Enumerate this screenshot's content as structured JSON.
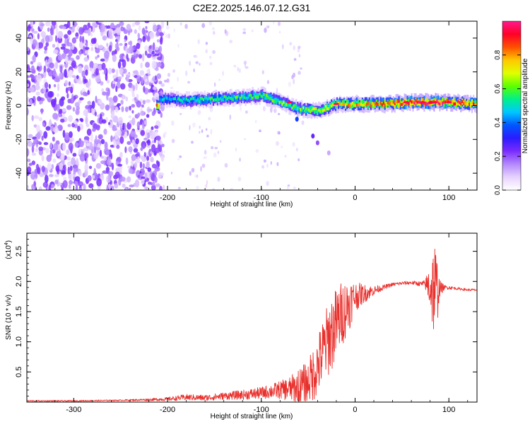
{
  "title": "C2E2.2025.146.07.12.G31",
  "colors": {
    "snr_line": "#e8302c",
    "colormap": [
      "#ffffff",
      "#e6d2ff",
      "#b488ff",
      "#7a2bff",
      "#2a1cff",
      "#0057ff",
      "#00c8ff",
      "#00f08c",
      "#5cff00",
      "#e0ff00",
      "#ffc800",
      "#ff5000",
      "#ff0028",
      "#ff1a8c"
    ]
  },
  "chart_data": [
    {
      "type": "heatmap",
      "title": "",
      "xlabel": "Height of straight line (km)",
      "ylabel": "Frequency (Hz)",
      "xlim": [
        -350,
        130
      ],
      "ylim": [
        -50,
        50
      ],
      "xticks": [
        "-300",
        "-200",
        "-100",
        "0",
        "100"
      ],
      "xtick_values": [
        -300,
        -200,
        -100,
        0,
        100
      ],
      "yticks": [
        "-40",
        "-20",
        "0",
        "20",
        "40"
      ],
      "ytick_values": [
        -40,
        -20,
        0,
        20,
        40
      ],
      "colorbar": {
        "label": "Normalized spectral amplitude",
        "range": [
          0,
          1
        ],
        "ticks": [
          "0.0",
          "0.2",
          "0.4",
          "0.6",
          "0.8"
        ],
        "tick_values": [
          0.0,
          0.2,
          0.4,
          0.6,
          0.8
        ]
      },
      "noise_region": {
        "x_range": [
          -350,
          -205
        ],
        "y_range": [
          -50,
          50
        ],
        "amplitude": [
          0.05,
          0.25
        ]
      },
      "ridge": {
        "description_points": [
          {
            "x": -210,
            "freq": 4,
            "amplitude": 0.45
          },
          {
            "x": -180,
            "freq": 3,
            "amplitude": 0.5
          },
          {
            "x": -150,
            "freq": 4,
            "amplitude": 0.55
          },
          {
            "x": -120,
            "freq": 5,
            "amplitude": 0.55
          },
          {
            "x": -100,
            "freq": 6,
            "amplitude": 0.6
          },
          {
            "x": -80,
            "freq": 2,
            "amplitude": 0.6
          },
          {
            "x": -60,
            "freq": -2,
            "amplitude": 0.6
          },
          {
            "x": -40,
            "freq": -3,
            "amplitude": 0.65
          },
          {
            "x": -20,
            "freq": 1,
            "amplitude": 0.7
          },
          {
            "x": 0,
            "freq": 1,
            "amplitude": 0.75
          },
          {
            "x": 30,
            "freq": 1,
            "amplitude": 0.8
          },
          {
            "x": 60,
            "freq": 2,
            "amplitude": 0.9
          },
          {
            "x": 80,
            "freq": 2,
            "amplitude": 0.95
          },
          {
            "x": 100,
            "freq": 2,
            "amplitude": 0.9
          },
          {
            "x": 130,
            "freq": 1,
            "amplitude": 0.8
          }
        ]
      }
    },
    {
      "type": "line",
      "title": "",
      "xlabel": "Height of straight line (km)",
      "ylabel": "SNR (10 * v/v)",
      "y_multiplier": "(x10",
      "y_multiplier_exp": "4",
      "y_multiplier_close": ")",
      "xlim": [
        -350,
        130
      ],
      "ylim": [
        0,
        2.8
      ],
      "xticks": [
        "-300",
        "-200",
        "-100",
        "0",
        "100"
      ],
      "xtick_values": [
        -300,
        -200,
        -100,
        0,
        100
      ],
      "yticks": [
        "0.5",
        "1.0",
        "1.5",
        "2.0",
        "2.5"
      ],
      "ytick_values": [
        0.5,
        1.0,
        1.5,
        2.0,
        2.5
      ],
      "series": [
        {
          "name": "",
          "x": [
            -350,
            -300,
            -250,
            -220,
            -200,
            -180,
            -160,
            -140,
            -120,
            -100,
            -90,
            -80,
            -70,
            -60,
            -50,
            -45,
            -40,
            -35,
            -30,
            -25,
            -20,
            -15,
            -10,
            -5,
            0,
            10,
            20,
            30,
            40,
            50,
            60,
            70,
            75,
            80,
            85,
            88,
            90,
            95,
            100,
            110,
            120,
            130
          ],
          "y": [
            0.02,
            0.02,
            0.03,
            0.04,
            0.05,
            0.08,
            0.07,
            0.1,
            0.12,
            0.15,
            0.18,
            0.2,
            0.22,
            0.25,
            0.35,
            0.45,
            0.6,
            0.8,
            1.0,
            1.15,
            1.3,
            1.45,
            1.55,
            1.65,
            1.75,
            1.8,
            1.85,
            1.9,
            1.95,
            1.97,
            1.98,
            1.96,
            1.95,
            1.92,
            1.85,
            1.85,
            1.88,
            1.9,
            1.9,
            1.88,
            1.86,
            1.86
          ],
          "spread": [
            0.01,
            0.01,
            0.01,
            0.02,
            0.03,
            0.05,
            0.05,
            0.06,
            0.08,
            0.1,
            0.12,
            0.15,
            0.2,
            0.3,
            0.35,
            0.45,
            0.5,
            0.55,
            0.6,
            0.65,
            0.6,
            0.55,
            0.5,
            0.4,
            0.25,
            0.15,
            0.08,
            0.04,
            0.03,
            0.03,
            0.03,
            0.04,
            0.08,
            0.45,
            0.9,
            0.5,
            0.15,
            0.04,
            0.03,
            0.02,
            0.02,
            0.02
          ]
        }
      ]
    }
  ]
}
